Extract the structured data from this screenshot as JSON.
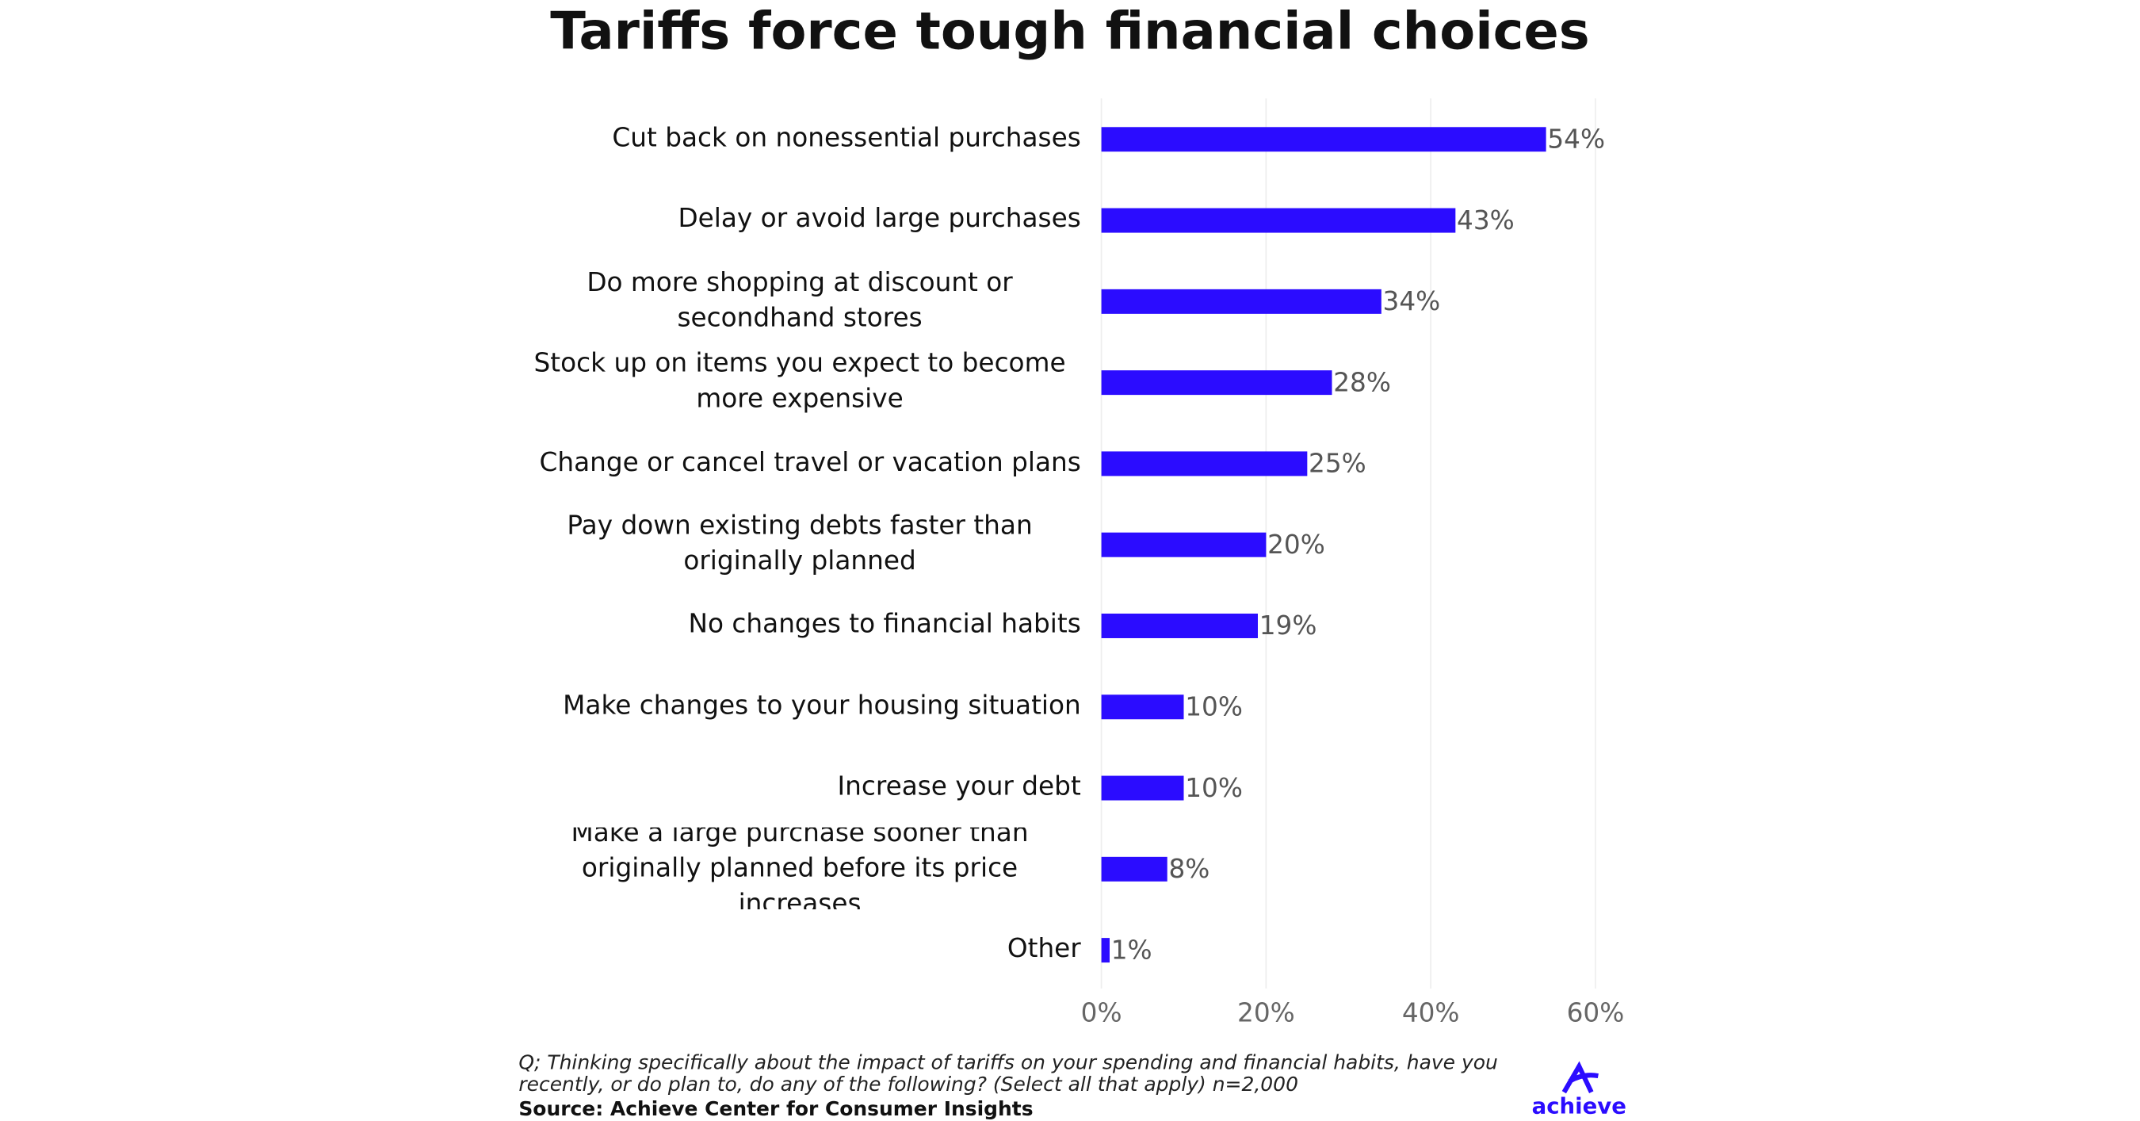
{
  "chart_data": {
    "type": "bar",
    "orientation": "horizontal",
    "title": "Tariffs force tough financial choices",
    "categories": [
      "Cut back on nonessential purchases",
      "Delay or avoid large purchases",
      "Do more shopping at discount or secondhand stores",
      "Stock up on items you expect to become more expensive",
      "Change or cancel travel or vacation plans",
      "Pay down existing debts faster than originally planned",
      "No changes to financial habits",
      "Make changes to your housing situation",
      "Increase your debt",
      "Make a large purchase sooner than originally planned before its price increases",
      "Other"
    ],
    "values": [
      54,
      43,
      34,
      28,
      25,
      20,
      19,
      10,
      10,
      8,
      1
    ],
    "value_labels": [
      "54%",
      "43%",
      "34%",
      "28%",
      "25%",
      "20%",
      "19%",
      "10%",
      "10%",
      "8%",
      "1%"
    ],
    "color": "#2b0cff",
    "xlim": [
      0,
      60
    ],
    "xticks": [
      {
        "value": 0,
        "label": "0%"
      },
      {
        "value": 20,
        "label": "20%"
      },
      {
        "value": 40,
        "label": "40%"
      },
      {
        "value": 60,
        "label": "60%"
      }
    ],
    "grid": true,
    "note": "Q; Thinking specifically about the impact of tariffs on your spending and financial habits, have you recently, or do plan to, do any of the following? (Select all that apply) n=2,000",
    "source": "Source: Achieve Center for Consumer Insights",
    "logo": "achieve"
  }
}
